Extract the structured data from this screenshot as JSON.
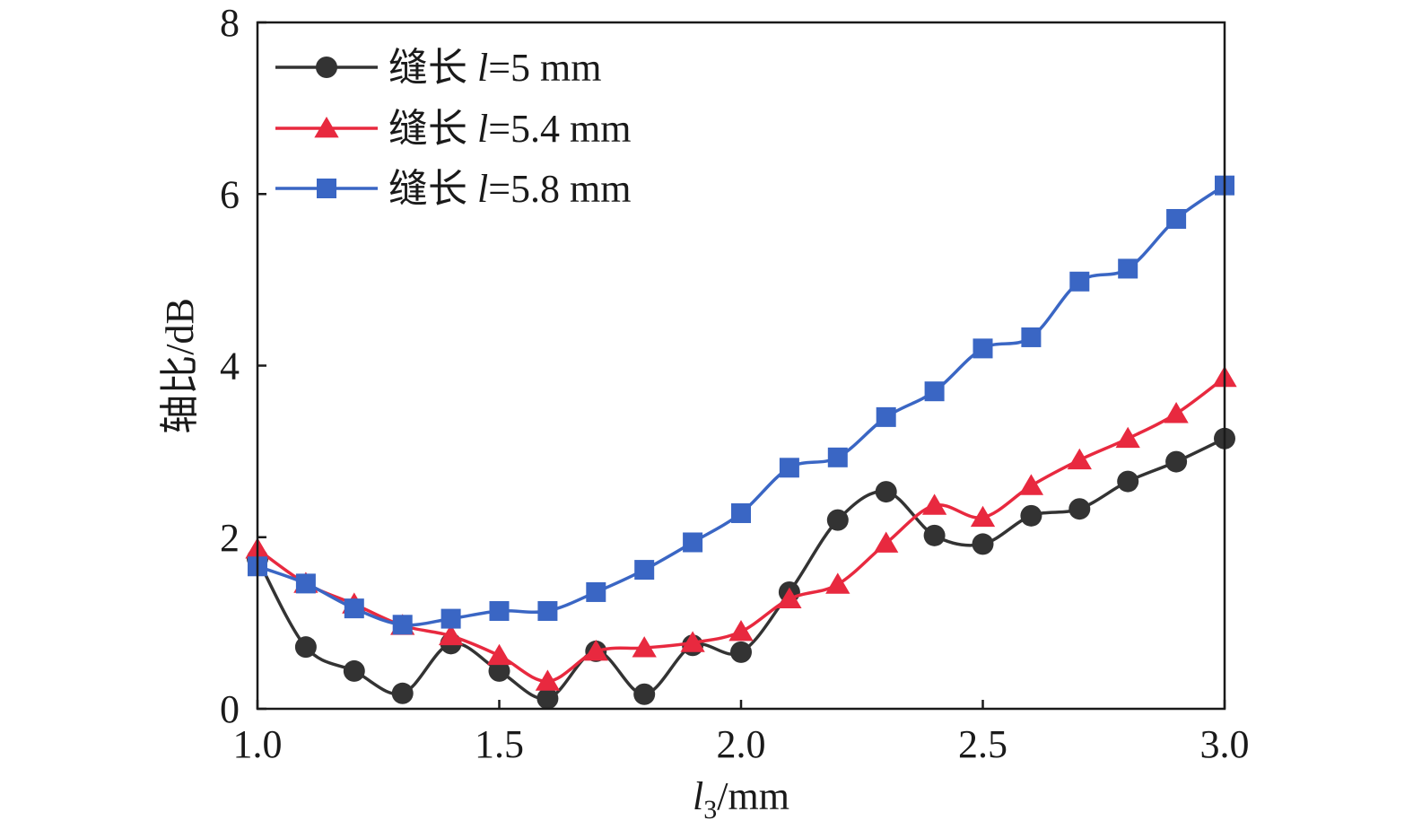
{
  "chart_data": {
    "type": "line",
    "xlabel": "l3/mm",
    "xlabel_main": "l",
    "xlabel_sub": "3",
    "xlabel_unit": "/mm",
    "ylabel": "轴比/dB",
    "xlim": [
      1.0,
      3.0
    ],
    "ylim": [
      0,
      8
    ],
    "xticks": [
      "1.0",
      "1.5",
      "2.0",
      "2.5",
      "3.0"
    ],
    "yticks": [
      "0",
      "2",
      "4",
      "6",
      "8"
    ],
    "grid": false,
    "legend_position": "top-left",
    "x": [
      1.0,
      1.1,
      1.2,
      1.3,
      1.4,
      1.5,
      1.6,
      1.7,
      1.8,
      1.9,
      2.0,
      2.1,
      2.2,
      2.3,
      2.4,
      2.5,
      2.6,
      2.7,
      2.8,
      2.9,
      3.0
    ],
    "series": [
      {
        "name": "缝长 l=5 mm",
        "name_prefix": "缝长 ",
        "name_var": "l",
        "name_suffix": "=5 mm",
        "color": "#333333",
        "marker": "circle",
        "values": [
          1.75,
          0.72,
          0.44,
          0.18,
          0.76,
          0.44,
          0.12,
          0.67,
          0.17,
          0.74,
          0.66,
          1.36,
          2.2,
          2.53,
          2.02,
          1.92,
          2.25,
          2.33,
          2.65,
          2.88,
          3.15
        ]
      },
      {
        "name": "缝长 l=5.4 mm",
        "name_prefix": "缝长 ",
        "name_var": "l",
        "name_suffix": "=5.4 mm",
        "color": "#e8293f",
        "marker": "triangle",
        "values": [
          1.86,
          1.46,
          1.22,
          0.97,
          0.85,
          0.62,
          0.32,
          0.67,
          0.71,
          0.77,
          0.9,
          1.28,
          1.45,
          1.93,
          2.37,
          2.23,
          2.6,
          2.9,
          3.15,
          3.44,
          3.86
        ]
      },
      {
        "name": "缝长 l=5.8 mm",
        "name_prefix": "缝长 ",
        "name_var": "l",
        "name_suffix": "=5.8 mm",
        "color": "#3a66c4",
        "marker": "square",
        "values": [
          1.66,
          1.46,
          1.17,
          0.98,
          1.05,
          1.14,
          1.14,
          1.36,
          1.62,
          1.94,
          2.28,
          2.81,
          2.93,
          3.4,
          3.7,
          4.2,
          4.33,
          4.98,
          5.13,
          5.71,
          6.1
        ]
      }
    ]
  }
}
